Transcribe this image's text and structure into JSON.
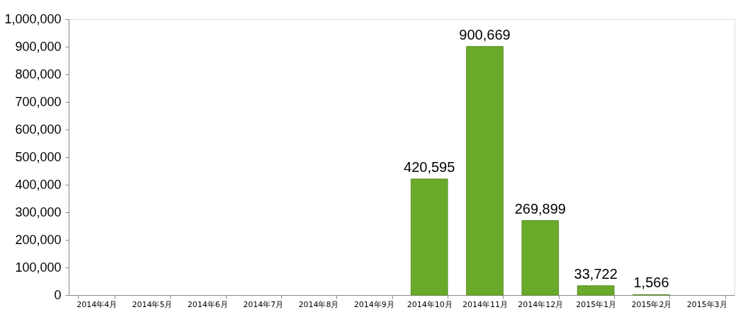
{
  "chart_data": {
    "type": "bar",
    "categories": [
      "2014年4月",
      "2014年5月",
      "2014年6月",
      "2014年7月",
      "2014年8月",
      "2014年9月",
      "2014年10月",
      "2014年11月",
      "2014年12月",
      "2015年1月",
      "2015年2月",
      "2015年3月"
    ],
    "values": [
      null,
      null,
      null,
      null,
      null,
      null,
      420595,
      900669,
      269899,
      33722,
      1566,
      null
    ],
    "color": "#6aaa2a",
    "ylim": [
      0,
      1000000
    ],
    "yticks": [
      {
        "value": 0,
        "label": "0"
      },
      {
        "value": 100000,
        "label": "100,000"
      },
      {
        "value": 200000,
        "label": "200,000"
      },
      {
        "value": 300000,
        "label": "300,000"
      },
      {
        "value": 400000,
        "label": "400,000"
      },
      {
        "value": 500000,
        "label": "500,000"
      },
      {
        "value": 600000,
        "label": "600,000"
      },
      {
        "value": 700000,
        "label": "700,000"
      },
      {
        "value": 800000,
        "label": "800,000"
      },
      {
        "value": 900000,
        "label": "900,000"
      },
      {
        "value": 1000000,
        "label": "1,000,000"
      }
    ],
    "value_labels": [
      null,
      null,
      null,
      null,
      null,
      null,
      "420,595",
      "900,669",
      "269,899",
      "33,722",
      "1,566",
      null
    ],
    "grid": false
  }
}
